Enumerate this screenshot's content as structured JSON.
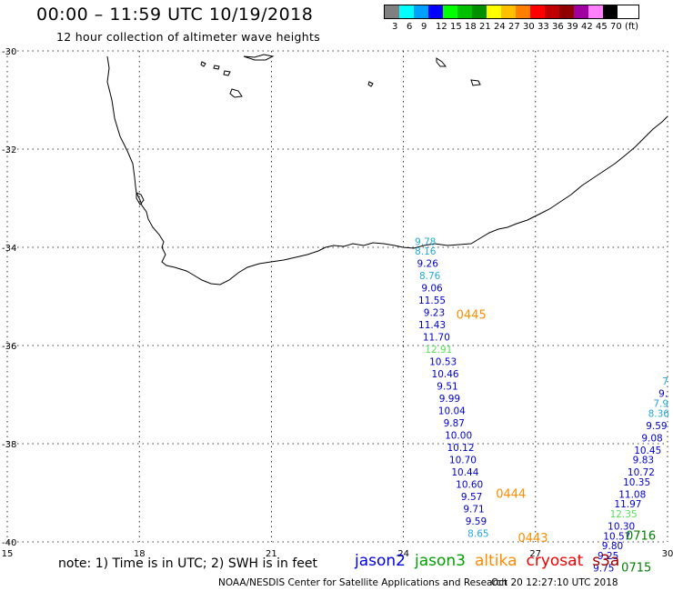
{
  "header": {
    "title": "00:00 – 11:59 UTC 10/19/2018",
    "subtitle": "12 hour collection of altimeter wave heights"
  },
  "legend": {
    "colors": [
      "#808080",
      "#00ffff",
      "#00a0ff",
      "#0000ff",
      "#00ff00",
      "#00c000",
      "#009000",
      "#ffff00",
      "#ffc000",
      "#ff8000",
      "#ff0000",
      "#c00000",
      "#900000",
      "#a000a0",
      "#ff80ff",
      "#000000"
    ],
    "labels": [
      "3",
      "6",
      "9",
      "12",
      "15",
      "18",
      "21",
      "24",
      "27",
      "30",
      "33",
      "36",
      "39",
      "42",
      "45",
      "70",
      "(ft)"
    ]
  },
  "map": {
    "lon_ticks": [
      "15",
      "18",
      "21",
      "24",
      "27",
      "30"
    ],
    "lat_ticks": [
      "-30",
      "-32",
      "-34",
      "-36",
      "-38",
      "-40"
    ]
  },
  "tracks": [
    {
      "satellite": "jason2",
      "readings": [
        {
          "lon": 24.5,
          "lat": -33.95,
          "swh": "9.78",
          "color": "#22a8d8"
        },
        {
          "lon": 24.5,
          "lat": -34.15,
          "swh": "8.16",
          "color": "#22a8d8"
        },
        {
          "lon": 24.55,
          "lat": -34.4,
          "swh": "9.26",
          "color": "#0000c8"
        },
        {
          "lon": 24.6,
          "lat": -34.65,
          "swh": "8.76",
          "color": "#22a8d8"
        },
        {
          "lon": 24.65,
          "lat": -34.9,
          "swh": "9.06",
          "color": "#0000c8"
        },
        {
          "lon": 24.65,
          "lat": -35.15,
          "swh": "11.55",
          "color": "#0000c8"
        },
        {
          "lon": 24.7,
          "lat": -35.4,
          "swh": "9.23",
          "color": "#0000c8"
        },
        {
          "lon": 24.65,
          "lat": -35.65,
          "swh": "11.43",
          "color": "#0000c8"
        },
        {
          "lon": 24.75,
          "lat": -35.9,
          "swh": "11.70",
          "color": "#0000c8"
        },
        {
          "lon": 24.8,
          "lat": -36.15,
          "swh": "12.91",
          "color": "#55e055"
        },
        {
          "lon": 24.9,
          "lat": -36.4,
          "swh": "10.53",
          "color": "#0000c8"
        },
        {
          "lon": 24.95,
          "lat": -36.65,
          "swh": "10.46",
          "color": "#0000c8"
        },
        {
          "lon": 25.0,
          "lat": -36.9,
          "swh": "9.51",
          "color": "#0000c8"
        },
        {
          "lon": 25.05,
          "lat": -37.15,
          "swh": "9.99",
          "color": "#0000c8"
        },
        {
          "lon": 25.1,
          "lat": -37.4,
          "swh": "10.04",
          "color": "#0000c8"
        },
        {
          "lon": 25.15,
          "lat": -37.65,
          "swh": "9.87",
          "color": "#0000c8"
        },
        {
          "lon": 25.25,
          "lat": -37.9,
          "swh": "10.00",
          "color": "#0000c8"
        },
        {
          "lon": 25.3,
          "lat": -38.15,
          "swh": "10.12",
          "color": "#0000c8"
        },
        {
          "lon": 25.35,
          "lat": -38.4,
          "swh": "10.70",
          "color": "#0000c8"
        },
        {
          "lon": 25.4,
          "lat": -38.65,
          "swh": "10.44",
          "color": "#0000c8"
        },
        {
          "lon": 25.5,
          "lat": -38.9,
          "swh": "10.60",
          "color": "#0000c8"
        },
        {
          "lon": 25.55,
          "lat": -39.15,
          "swh": "9.57",
          "color": "#0000c8"
        },
        {
          "lon": 25.6,
          "lat": -39.4,
          "swh": "9.71",
          "color": "#0000c8"
        },
        {
          "lon": 25.65,
          "lat": -39.65,
          "swh": "9.59",
          "color": "#0000c8"
        },
        {
          "lon": 25.7,
          "lat": -39.9,
          "swh": "8.65",
          "color": "#22a8d8"
        }
      ]
    },
    {
      "satellite": "jason2",
      "readings": [
        {
          "lon": 29.95,
          "lat": -36.8,
          "swh": "7",
          "color": "#22a8d8"
        },
        {
          "lon": 29.9,
          "lat": -37.05,
          "swh": "9.",
          "color": "#0000c8"
        },
        {
          "lon": 29.85,
          "lat": -37.25,
          "swh": "7.9",
          "color": "#22a8d8"
        },
        {
          "lon": 29.8,
          "lat": -37.45,
          "swh": "8.36",
          "color": "#22a8d8"
        },
        {
          "lon": 29.75,
          "lat": -37.7,
          "swh": "9.59",
          "color": "#0000c8"
        },
        {
          "lon": 29.65,
          "lat": -37.95,
          "swh": "9.08",
          "color": "#0000c8"
        },
        {
          "lon": 29.55,
          "lat": -38.2,
          "swh": "10.45",
          "color": "#0000c8"
        },
        {
          "lon": 29.45,
          "lat": -38.4,
          "swh": "9.83",
          "color": "#0000c8"
        },
        {
          "lon": 29.4,
          "lat": -38.65,
          "swh": "10.72",
          "color": "#0000c8"
        },
        {
          "lon": 29.3,
          "lat": -38.85,
          "swh": "10.35",
          "color": "#0000c8"
        },
        {
          "lon": 29.2,
          "lat": -39.1,
          "swh": "11.08",
          "color": "#0000c8"
        },
        {
          "lon": 29.1,
          "lat": -39.3,
          "swh": "11.97",
          "color": "#0000c8"
        },
        {
          "lon": 29.0,
          "lat": -39.5,
          "swh": "12.35",
          "color": "#55e055"
        },
        {
          "lon": 28.95,
          "lat": -39.75,
          "swh": "10.30",
          "color": "#0000c8"
        },
        {
          "lon": 28.85,
          "lat": -39.95,
          "swh": "10.57",
          "color": "#0000c8"
        },
        {
          "lon": 28.75,
          "lat": -40.15,
          "swh": "9.80",
          "color": "#0000c8"
        },
        {
          "lon": 28.65,
          "lat": -40.35,
          "swh": "9.25",
          "color": "#0000c8"
        },
        {
          "lon": 28.55,
          "lat": -40.6,
          "swh": "9.75",
          "color": "#0000c8"
        }
      ]
    }
  ],
  "pass_times": [
    {
      "label": "0445",
      "lon": 25.2,
      "lat": -35.45,
      "color": "#ff8c00"
    },
    {
      "label": "0444",
      "lon": 26.1,
      "lat": -39.1,
      "color": "#ff8c00"
    },
    {
      "label": "0443",
      "lon": 26.6,
      "lat": -40.0,
      "color": "#ff8c00"
    },
    {
      "label": "0716",
      "lon": 29.05,
      "lat": -39.95,
      "color": "#008000"
    },
    {
      "label": "0715",
      "lon": 28.95,
      "lat": -40.6,
      "color": "#008000"
    }
  ],
  "note": "note: 1) Time is in UTC; 2) SWH is in feet",
  "satellites": [
    {
      "name": "jason2",
      "color": "#0000e0"
    },
    {
      "name": "jason3",
      "color": "#00a000"
    },
    {
      "name": "altika",
      "color": "#ff8c00"
    },
    {
      "name": "cryosat",
      "color": "#ee0000"
    },
    {
      "name": "s3a",
      "color": "#a00000"
    }
  ],
  "footer": {
    "credit": "NOAA/NESDIS Center for Satellite Applications and Research",
    "generated": "Oct 20 12:27:10 UTC 2018"
  }
}
